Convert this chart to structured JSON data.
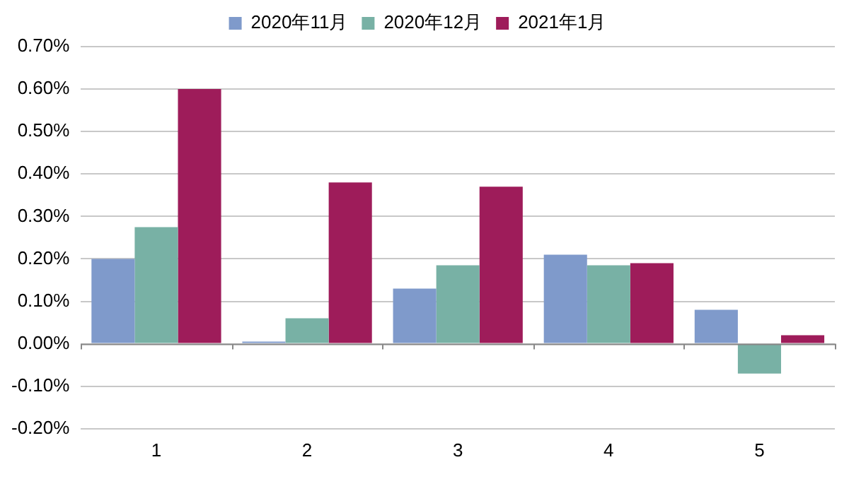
{
  "chart_data": {
    "type": "bar",
    "categories": [
      "1",
      "2",
      "3",
      "4",
      "5"
    ],
    "series": [
      {
        "name": "2020年11月",
        "color": "#7f9acb",
        "values": [
          0.2,
          0.005,
          0.13,
          0.21,
          0.08
        ]
      },
      {
        "name": "2020年12月",
        "color": "#78b1a5",
        "values": [
          0.275,
          0.06,
          0.185,
          0.185,
          -0.07
        ]
      },
      {
        "name": "2021年1月",
        "color": "#9e1c5a",
        "values": [
          0.6,
          0.38,
          0.37,
          0.19,
          0.02
        ]
      }
    ],
    "ylim": [
      -0.2,
      0.7
    ],
    "yticks": [
      {
        "value": -0.2,
        "label": "-0.20%"
      },
      {
        "value": -0.1,
        "label": "-0.10%"
      },
      {
        "value": 0,
        "label": "0.00%"
      },
      {
        "value": 0.1,
        "label": "0.10%"
      },
      {
        "value": 0.2,
        "label": "0.20%"
      },
      {
        "value": 0.3,
        "label": "0.30%"
      },
      {
        "value": 0.4,
        "label": "0.40%"
      },
      {
        "value": 0.5,
        "label": "0.50%"
      },
      {
        "value": 0.6,
        "label": "0.60%"
      },
      {
        "value": 0.7,
        "label": "0.70%"
      }
    ],
    "grid": "y",
    "legend": "top"
  }
}
